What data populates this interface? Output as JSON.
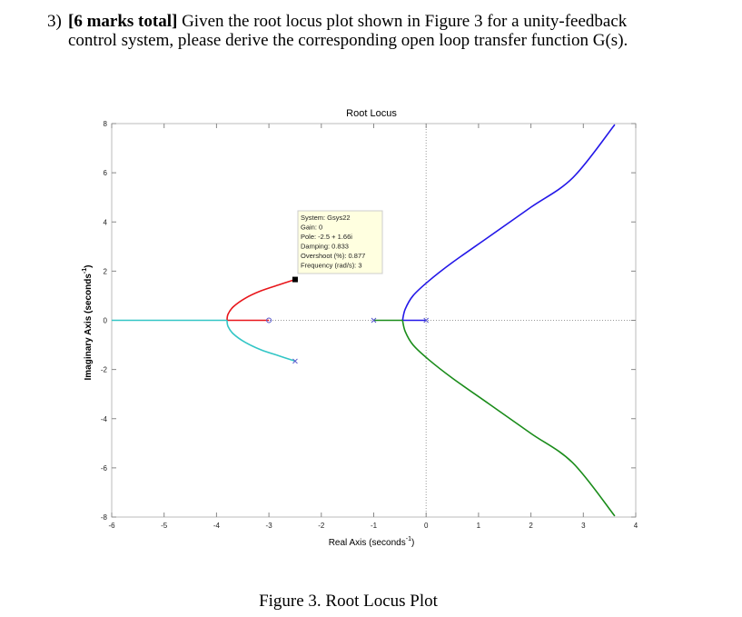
{
  "question": {
    "number": "3)",
    "marks": "[6 marks total]",
    "text_line1": " Given the root locus plot shown in Figure 3 for a unity-feedback",
    "text_line2": "control system, please derive the corresponding open loop transfer function G(s)."
  },
  "caption": "Figure 3. Root Locus Plot",
  "chart_data": {
    "type": "line",
    "title": "Root Locus",
    "xlabel": "Real Axis (seconds",
    "xlabel_sup": "-1",
    "xlabel_end": ")",
    "ylabel": "Imaginary Axis (seconds",
    "ylabel_sup": "-1",
    "ylabel_end": ")",
    "xlim": [
      -6,
      4
    ],
    "ylim": [
      -8,
      8
    ],
    "xticks": [
      -6,
      -5,
      -4,
      -3,
      -2,
      -1,
      0,
      1,
      2,
      3,
      4
    ],
    "yticks": [
      -8,
      -6,
      -4,
      -2,
      0,
      2,
      4,
      6,
      8
    ],
    "xtick_labels": [
      "-6",
      "-5",
      "-4",
      "-3",
      "-2",
      "-1",
      "0",
      "1",
      "2",
      "3",
      "4"
    ],
    "ytick_labels": [
      "-8",
      "-6",
      "-4",
      "-2",
      "0",
      "2",
      "4",
      "6",
      "8"
    ],
    "grid": false,
    "colors": {
      "red": "#e8161b",
      "cyan": "#33c6c6",
      "blue": "#2317e8",
      "green": "#1a8c1a",
      "pz": "#5555cc"
    },
    "series": [
      {
        "color": "red",
        "points": [
          [
            -2.5,
            1.66
          ],
          [
            -2.8,
            1.45
          ],
          [
            -3.15,
            1.2
          ],
          [
            -3.45,
            0.9
          ],
          [
            -3.68,
            0.55
          ],
          [
            -3.78,
            0.25
          ],
          [
            -3.8,
            0
          ]
        ]
      },
      {
        "color": "red",
        "points": [
          [
            -3.8,
            0
          ],
          [
            -3,
            0
          ]
        ]
      },
      {
        "color": "cyan",
        "points": [
          [
            -2.5,
            -1.66
          ],
          [
            -2.8,
            -1.45
          ],
          [
            -3.15,
            -1.2
          ],
          [
            -3.45,
            -0.9
          ],
          [
            -3.68,
            -0.55
          ],
          [
            -3.78,
            -0.25
          ],
          [
            -3.8,
            0
          ]
        ]
      },
      {
        "color": "cyan",
        "points": [
          [
            -3.8,
            0
          ],
          [
            -6,
            0
          ]
        ]
      },
      {
        "color": "blue",
        "points": [
          [
            0,
            0
          ],
          [
            -0.45,
            0
          ]
        ]
      },
      {
        "color": "blue",
        "points": [
          [
            -0.45,
            0
          ],
          [
            -0.4,
            0.45
          ],
          [
            -0.25,
            1
          ],
          [
            0.05,
            1.6
          ],
          [
            0.5,
            2.35
          ],
          [
            1.2,
            3.4
          ],
          [
            2,
            4.6
          ],
          [
            2.8,
            5.8
          ],
          [
            3.6,
            7.96
          ]
        ]
      },
      {
        "color": "green",
        "points": [
          [
            -1,
            0
          ],
          [
            -0.45,
            0
          ]
        ]
      },
      {
        "color": "green",
        "points": [
          [
            -0.45,
            0
          ],
          [
            -0.4,
            -0.45
          ],
          [
            -0.25,
            -1
          ],
          [
            0.05,
            -1.6
          ],
          [
            0.5,
            -2.35
          ],
          [
            1.2,
            -3.4
          ],
          [
            2,
            -4.6
          ],
          [
            2.8,
            -5.8
          ],
          [
            3.6,
            -7.96
          ]
        ]
      }
    ],
    "poles": [
      [
        -2.5,
        1.66
      ],
      [
        -2.5,
        -1.66
      ],
      [
        0,
        0
      ],
      [
        -1,
        0
      ]
    ],
    "zeros": [
      [
        -3,
        0
      ]
    ],
    "datatip": {
      "point": [
        -2.5,
        1.66
      ],
      "lines": [
        "System: Gsys22",
        "Gain: 0",
        "Pole: -2.5 + 1.66i",
        "Damping: 0.833",
        "Overshoot (%): 0.877",
        "Frequency (rad/s): 3"
      ]
    }
  }
}
